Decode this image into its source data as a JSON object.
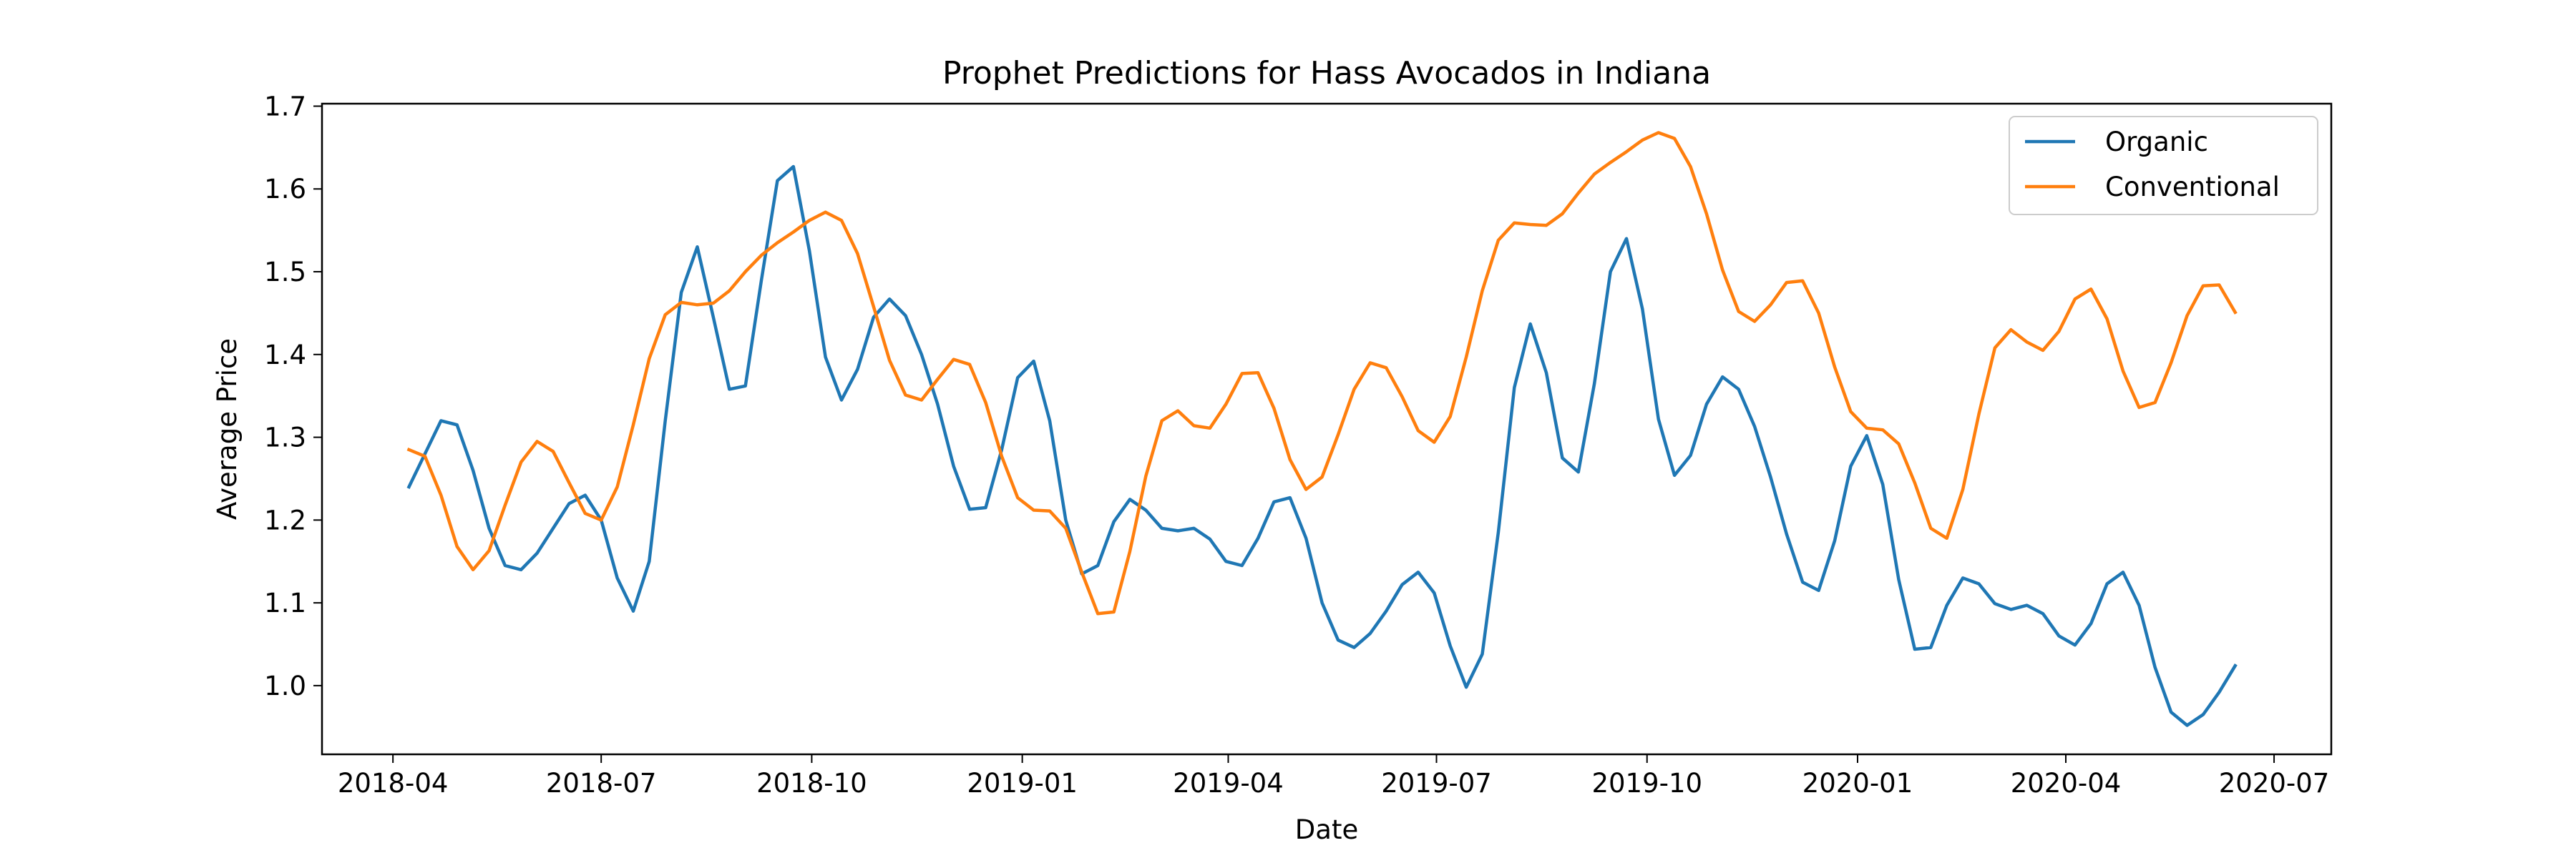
{
  "chart_data": {
    "type": "line",
    "title": "Prophet Predictions for Hass Avocados in Indiana",
    "xlabel": "Date",
    "ylabel": "Average Price",
    "xlim": [
      "2018-03-01",
      "2020-07-26"
    ],
    "ylim": [
      0.917,
      1.703
    ],
    "x_ticks": [
      "2018-04",
      "2018-07",
      "2018-10",
      "2019-01",
      "2019-04",
      "2019-07",
      "2019-10",
      "2020-01",
      "2020-04",
      "2020-07"
    ],
    "y_ticks": [
      "1.0",
      "1.1",
      "1.2",
      "1.3",
      "1.4",
      "1.5",
      "1.6",
      "1.7"
    ],
    "grid": false,
    "legend_position": "top-right",
    "colors": {
      "Organic": "#1f77b4",
      "Conventional": "#ff7f0e"
    },
    "series": [
      {
        "name": "Organic",
        "points": [
          [
            "2018-04-08",
            1.24
          ],
          [
            "2018-04-15",
            1.28
          ],
          [
            "2018-04-22",
            1.32
          ],
          [
            "2018-04-29",
            1.315
          ],
          [
            "2018-05-06",
            1.26
          ],
          [
            "2018-05-13",
            1.19
          ],
          [
            "2018-05-20",
            1.145
          ],
          [
            "2018-05-27",
            1.14
          ],
          [
            "2018-06-03",
            1.16
          ],
          [
            "2018-06-10",
            1.19
          ],
          [
            "2018-06-17",
            1.22
          ],
          [
            "2018-06-24",
            1.23
          ],
          [
            "2018-07-01",
            1.2
          ],
          [
            "2018-07-08",
            1.13
          ],
          [
            "2018-07-15",
            1.09
          ],
          [
            "2018-07-22",
            1.15
          ],
          [
            "2018-07-29",
            1.32
          ],
          [
            "2018-08-05",
            1.475
          ],
          [
            "2018-08-12",
            1.53
          ],
          [
            "2018-08-19",
            1.445
          ],
          [
            "2018-08-26",
            1.358
          ],
          [
            "2018-09-02",
            1.362
          ],
          [
            "2018-09-09",
            1.49
          ],
          [
            "2018-09-16",
            1.61
          ],
          [
            "2018-09-23",
            1.627
          ],
          [
            "2018-09-30",
            1.525
          ],
          [
            "2018-10-07",
            1.397
          ],
          [
            "2018-10-14",
            1.345
          ],
          [
            "2018-10-21",
            1.382
          ],
          [
            "2018-10-28",
            1.445
          ],
          [
            "2018-11-04",
            1.467
          ],
          [
            "2018-11-11",
            1.447
          ],
          [
            "2018-11-18",
            1.4
          ],
          [
            "2018-11-25",
            1.34
          ],
          [
            "2018-12-02",
            1.265
          ],
          [
            "2018-12-09",
            1.213
          ],
          [
            "2018-12-16",
            1.215
          ],
          [
            "2018-12-23",
            1.285
          ],
          [
            "2018-12-30",
            1.372
          ],
          [
            "2019-01-06",
            1.392
          ],
          [
            "2019-01-13",
            1.32
          ],
          [
            "2019-01-20",
            1.2
          ],
          [
            "2019-01-27",
            1.135
          ],
          [
            "2019-02-03",
            1.145
          ],
          [
            "2019-02-10",
            1.198
          ],
          [
            "2019-02-17",
            1.225
          ],
          [
            "2019-02-24",
            1.212
          ],
          [
            "2019-03-03",
            1.19
          ],
          [
            "2019-03-10",
            1.187
          ],
          [
            "2019-03-17",
            1.19
          ],
          [
            "2019-03-24",
            1.177
          ],
          [
            "2019-03-31",
            1.15
          ],
          [
            "2019-04-07",
            1.145
          ],
          [
            "2019-04-14",
            1.178
          ],
          [
            "2019-04-21",
            1.222
          ],
          [
            "2019-04-28",
            1.227
          ],
          [
            "2019-05-05",
            1.178
          ],
          [
            "2019-05-12",
            1.1
          ],
          [
            "2019-05-19",
            1.055
          ],
          [
            "2019-05-26",
            1.046
          ],
          [
            "2019-06-02",
            1.063
          ],
          [
            "2019-06-09",
            1.09
          ],
          [
            "2019-06-16",
            1.122
          ],
          [
            "2019-06-23",
            1.137
          ],
          [
            "2019-06-30",
            1.112
          ],
          [
            "2019-07-07",
            1.048
          ],
          [
            "2019-07-14",
            0.998
          ],
          [
            "2019-07-21",
            1.038
          ],
          [
            "2019-07-28",
            1.185
          ],
          [
            "2019-08-04",
            1.36
          ],
          [
            "2019-08-11",
            1.437
          ],
          [
            "2019-08-18",
            1.378
          ],
          [
            "2019-08-25",
            1.275
          ],
          [
            "2019-09-01",
            1.258
          ],
          [
            "2019-09-08",
            1.365
          ],
          [
            "2019-09-15",
            1.5
          ],
          [
            "2019-09-22",
            1.54
          ],
          [
            "2019-09-29",
            1.455
          ],
          [
            "2019-10-06",
            1.322
          ],
          [
            "2019-10-13",
            1.254
          ],
          [
            "2019-10-20",
            1.278
          ],
          [
            "2019-10-27",
            1.34
          ],
          [
            "2019-11-03",
            1.373
          ],
          [
            "2019-11-10",
            1.358
          ],
          [
            "2019-11-17",
            1.313
          ],
          [
            "2019-11-24",
            1.252
          ],
          [
            "2019-12-01",
            1.183
          ],
          [
            "2019-12-08",
            1.125
          ],
          [
            "2019-12-15",
            1.115
          ],
          [
            "2019-12-22",
            1.175
          ],
          [
            "2019-12-29",
            1.265
          ],
          [
            "2020-01-05",
            1.302
          ],
          [
            "2020-01-12",
            1.243
          ],
          [
            "2020-01-19",
            1.128
          ],
          [
            "2020-01-26",
            1.044
          ],
          [
            "2020-02-02",
            1.046
          ],
          [
            "2020-02-09",
            1.097
          ],
          [
            "2020-02-16",
            1.13
          ],
          [
            "2020-02-23",
            1.123
          ],
          [
            "2020-03-01",
            1.099
          ],
          [
            "2020-03-08",
            1.092
          ],
          [
            "2020-03-15",
            1.097
          ],
          [
            "2020-03-22",
            1.087
          ],
          [
            "2020-03-29",
            1.06
          ],
          [
            "2020-04-05",
            1.049
          ],
          [
            "2020-04-12",
            1.075
          ],
          [
            "2020-04-19",
            1.123
          ],
          [
            "2020-04-26",
            1.137
          ],
          [
            "2020-05-03",
            1.097
          ],
          [
            "2020-05-10",
            1.022
          ],
          [
            "2020-05-17",
            0.968
          ],
          [
            "2020-05-24",
            0.952
          ],
          [
            "2020-05-31",
            0.965
          ],
          [
            "2020-06-07",
            0.992
          ],
          [
            "2020-06-14",
            1.024
          ]
        ]
      },
      {
        "name": "Conventional",
        "points": [
          [
            "2018-04-08",
            1.285
          ],
          [
            "2018-04-15",
            1.277
          ],
          [
            "2018-04-22",
            1.23
          ],
          [
            "2018-04-29",
            1.168
          ],
          [
            "2018-05-06",
            1.14
          ],
          [
            "2018-05-13",
            1.163
          ],
          [
            "2018-05-20",
            1.218
          ],
          [
            "2018-05-27",
            1.27
          ],
          [
            "2018-06-03",
            1.295
          ],
          [
            "2018-06-10",
            1.283
          ],
          [
            "2018-06-17",
            1.245
          ],
          [
            "2018-06-24",
            1.208
          ],
          [
            "2018-07-01",
            1.2
          ],
          [
            "2018-07-08",
            1.24
          ],
          [
            "2018-07-15",
            1.315
          ],
          [
            "2018-07-22",
            1.395
          ],
          [
            "2018-07-29",
            1.448
          ],
          [
            "2018-08-05",
            1.463
          ],
          [
            "2018-08-12",
            1.46
          ],
          [
            "2018-08-19",
            1.462
          ],
          [
            "2018-08-26",
            1.477
          ],
          [
            "2018-09-02",
            1.5
          ],
          [
            "2018-09-09",
            1.52
          ],
          [
            "2018-09-16",
            1.535
          ],
          [
            "2018-09-23",
            1.548
          ],
          [
            "2018-09-30",
            1.562
          ],
          [
            "2018-10-07",
            1.572
          ],
          [
            "2018-10-14",
            1.562
          ],
          [
            "2018-10-21",
            1.522
          ],
          [
            "2018-10-28",
            1.458
          ],
          [
            "2018-11-04",
            1.393
          ],
          [
            "2018-11-11",
            1.351
          ],
          [
            "2018-11-18",
            1.345
          ],
          [
            "2018-11-25",
            1.37
          ],
          [
            "2018-12-02",
            1.394
          ],
          [
            "2018-12-09",
            1.388
          ],
          [
            "2018-12-16",
            1.342
          ],
          [
            "2018-12-23",
            1.277
          ],
          [
            "2018-12-30",
            1.227
          ],
          [
            "2019-01-06",
            1.212
          ],
          [
            "2019-01-13",
            1.211
          ],
          [
            "2019-01-20",
            1.19
          ],
          [
            "2019-01-27",
            1.137
          ],
          [
            "2019-02-03",
            1.087
          ],
          [
            "2019-02-10",
            1.089
          ],
          [
            "2019-02-17",
            1.162
          ],
          [
            "2019-02-24",
            1.253
          ],
          [
            "2019-03-03",
            1.32
          ],
          [
            "2019-03-10",
            1.332
          ],
          [
            "2019-03-17",
            1.314
          ],
          [
            "2019-03-24",
            1.311
          ],
          [
            "2019-03-31",
            1.34
          ],
          [
            "2019-04-07",
            1.377
          ],
          [
            "2019-04-14",
            1.378
          ],
          [
            "2019-04-21",
            1.335
          ],
          [
            "2019-04-28",
            1.273
          ],
          [
            "2019-05-05",
            1.237
          ],
          [
            "2019-05-12",
            1.252
          ],
          [
            "2019-05-19",
            1.303
          ],
          [
            "2019-05-26",
            1.358
          ],
          [
            "2019-06-02",
            1.39
          ],
          [
            "2019-06-09",
            1.384
          ],
          [
            "2019-06-16",
            1.349
          ],
          [
            "2019-06-23",
            1.308
          ],
          [
            "2019-06-30",
            1.294
          ],
          [
            "2019-07-07",
            1.325
          ],
          [
            "2019-07-14",
            1.397
          ],
          [
            "2019-07-21",
            1.477
          ],
          [
            "2019-07-28",
            1.538
          ],
          [
            "2019-08-04",
            1.559
          ],
          [
            "2019-08-11",
            1.557
          ],
          [
            "2019-08-18",
            1.556
          ],
          [
            "2019-08-25",
            1.57
          ],
          [
            "2019-09-01",
            1.595
          ],
          [
            "2019-09-08",
            1.618
          ],
          [
            "2019-09-15",
            1.632
          ],
          [
            "2019-09-22",
            1.645
          ],
          [
            "2019-09-29",
            1.659
          ],
          [
            "2019-10-06",
            1.668
          ],
          [
            "2019-10-13",
            1.661
          ],
          [
            "2019-10-20",
            1.627
          ],
          [
            "2019-10-27",
            1.57
          ],
          [
            "2019-11-03",
            1.502
          ],
          [
            "2019-11-10",
            1.452
          ],
          [
            "2019-11-17",
            1.44
          ],
          [
            "2019-11-24",
            1.46
          ],
          [
            "2019-12-01",
            1.487
          ],
          [
            "2019-12-08",
            1.489
          ],
          [
            "2019-12-15",
            1.45
          ],
          [
            "2019-12-22",
            1.385
          ],
          [
            "2019-12-29",
            1.331
          ],
          [
            "2020-01-05",
            1.311
          ],
          [
            "2020-01-12",
            1.309
          ],
          [
            "2020-01-19",
            1.292
          ],
          [
            "2020-01-26",
            1.245
          ],
          [
            "2020-02-02",
            1.19
          ],
          [
            "2020-02-09",
            1.178
          ],
          [
            "2020-02-16",
            1.237
          ],
          [
            "2020-02-23",
            1.328
          ],
          [
            "2020-03-01",
            1.408
          ],
          [
            "2020-03-08",
            1.43
          ],
          [
            "2020-03-15",
            1.415
          ],
          [
            "2020-03-22",
            1.405
          ],
          [
            "2020-03-29",
            1.428
          ],
          [
            "2020-04-05",
            1.467
          ],
          [
            "2020-04-12",
            1.479
          ],
          [
            "2020-04-19",
            1.443
          ],
          [
            "2020-04-26",
            1.38
          ],
          [
            "2020-05-03",
            1.336
          ],
          [
            "2020-05-10",
            1.342
          ],
          [
            "2020-05-17",
            1.39
          ],
          [
            "2020-05-24",
            1.447
          ],
          [
            "2020-05-31",
            1.483
          ],
          [
            "2020-06-07",
            1.484
          ],
          [
            "2020-06-14",
            1.451
          ]
        ]
      }
    ]
  }
}
